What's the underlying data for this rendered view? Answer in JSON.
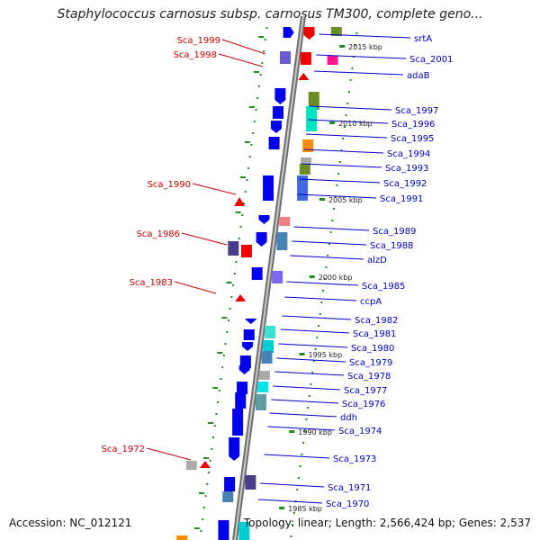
{
  "title": "Staphylococcus carnosus subsp. carnosus TM300, complete geno...",
  "footer": {
    "accession": "Accession: NC_012121",
    "summary": "Topology: linear; Length: 2,566,424 bp; Genes: 2,537"
  },
  "colors": {
    "backbone": "#9a9a9a",
    "left_label": "#cc0000",
    "right_label": "#0000cc",
    "forward_gene": "#0000ee",
    "reverse_gene": "#ee0000",
    "tick": "#228b22"
  },
  "scale_ticks": [
    "2015 kbp",
    "2010 kbp",
    "2005 kbp",
    "2000 kbp",
    "1995 kbp",
    "1990 kbp",
    "1985 kbp"
  ],
  "right_labels": [
    "srtA",
    "Sca_2001",
    "adaB",
    "Sca_1997",
    "Sca_1996",
    "Sca_1995",
    "Sca_1994",
    "Sca_1993",
    "Sca_1992",
    "Sca_1991",
    "Sca_1989",
    "Sca_1988",
    "alzD",
    "Sca_1985",
    "ccpA",
    "Sca_1982",
    "Sca_1981",
    "Sca_1980",
    "Sca_1979",
    "Sca_1978",
    "Sca_1977",
    "Sca_1976",
    "ddh",
    "Sca_1974",
    "Sca_1973",
    "Sca_1971",
    "Sca_1970"
  ],
  "left_labels": [
    "Sca_1999",
    "Sca_1998",
    "Sca_1990",
    "Sca_1986",
    "Sca_1983",
    "Sca_1972"
  ]
}
